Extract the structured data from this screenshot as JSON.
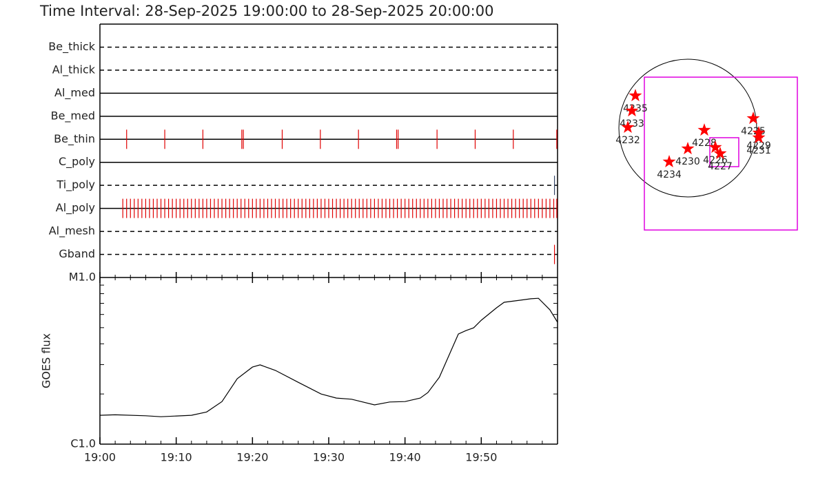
{
  "title": "Time Interval: 28-Sep-2025 19:00:00 to 28-Sep-2025 20:00:00",
  "chart_data": [
    {
      "type": "timeline",
      "categories": [
        "Be_thick",
        "Al_thick",
        "Al_med",
        "Be_med",
        "Be_thin",
        "C_poly",
        "Ti_poly",
        "Al_poly",
        "Al_mesh",
        "Gband"
      ],
      "line_styles": [
        "dashed",
        "dashed",
        "solid",
        "solid",
        "solid",
        "solid",
        "dashed",
        "solid",
        "dashed",
        "dashed"
      ],
      "event_colors": [
        "#e00000",
        "#e00000",
        "#e00000",
        "#e00000",
        "#e00000",
        "#e00000",
        "#334466",
        "#e00000",
        "#e00000",
        "#e00000"
      ],
      "events": [
        [],
        [],
        [],
        [],
        [
          3.5,
          8.5,
          13.5,
          18.6,
          18.8,
          23.9,
          28.9,
          33.9,
          38.9,
          39.1,
          44.2,
          49.2,
          54.2,
          59.9
        ],
        [],
        [
          59.6
        ],
        [
          3.0,
          3.5,
          4.0,
          4.5,
          5.0,
          5.5,
          6.0,
          6.5,
          7.0,
          7.5,
          8.0,
          8.5,
          9.0,
          9.5,
          10.0,
          10.5,
          11.0,
          11.5,
          12.0,
          12.5,
          13.0,
          13.5,
          14.0,
          14.5,
          15.0,
          15.5,
          16.0,
          16.5,
          17.0,
          17.5,
          18.0,
          18.5,
          19.0,
          19.5,
          20.0,
          20.5,
          21.0,
          21.5,
          22.0,
          22.5,
          23.0,
          23.5,
          24.0,
          24.5,
          25.0,
          25.5,
          26.0,
          26.5,
          27.0,
          27.5,
          28.0,
          28.5,
          29.0,
          29.5,
          30.0,
          30.5,
          31.0,
          31.5,
          32.0,
          32.5,
          33.0,
          33.5,
          34.0,
          34.5,
          35.0,
          35.5,
          36.0,
          36.5,
          37.0,
          37.5,
          38.0,
          38.5,
          39.0,
          39.5,
          40.0,
          40.5,
          41.0,
          41.5,
          42.0,
          42.5,
          43.0,
          43.5,
          44.0,
          44.5,
          45.0,
          45.5,
          46.0,
          46.5,
          47.0,
          47.5,
          48.0,
          48.5,
          49.0,
          49.5,
          50.0,
          50.5,
          51.0,
          51.5,
          52.0,
          52.5,
          53.0,
          53.5,
          54.0,
          54.5,
          55.0,
          55.5,
          56.0,
          56.5,
          57.0,
          57.5,
          58.0,
          58.5,
          59.0,
          59.5,
          59.9
        ],
        [],
        [
          59.6
        ]
      ],
      "xlim": [
        0,
        60
      ]
    },
    {
      "type": "line",
      "ylabel": "GOES flux",
      "color": "#000000",
      "log_y": true,
      "x": [
        0,
        2,
        6,
        8,
        12,
        14,
        16,
        18,
        20,
        21,
        23,
        26,
        29,
        31,
        33,
        36,
        38,
        40,
        42,
        43,
        44.5,
        46,
        47,
        48,
        49,
        50,
        52,
        53,
        55,
        56.5,
        57.5,
        59,
        60
      ],
      "values": [
        1.49e-06,
        1.5e-06,
        1.48e-06,
        1.46e-06,
        1.49e-06,
        1.56e-06,
        1.8e-06,
        2.47e-06,
        2.9e-06,
        2.99e-06,
        2.77e-06,
        2.35e-06,
        2e-06,
        1.89e-06,
        1.86e-06,
        1.72e-06,
        1.79e-06,
        1.8e-06,
        1.89e-06,
        2.04e-06,
        2.52e-06,
        3.61e-06,
        4.58e-06,
        4.8e-06,
        4.99e-06,
        5.54e-06,
        6.58e-06,
        7.1e-06,
        7.3e-06,
        7.45e-06,
        7.5e-06,
        6.4e-06,
        5.39e-06
      ],
      "xlim": [
        0,
        60
      ],
      "xticks": [
        {
          "value": 0,
          "label": "19:00"
        },
        {
          "value": 10,
          "label": "19:10"
        },
        {
          "value": 20,
          "label": "19:20"
        },
        {
          "value": 30,
          "label": "19:30"
        },
        {
          "value": 40,
          "label": "19:40"
        },
        {
          "value": 50,
          "label": "19:50"
        }
      ],
      "xminor": [
        2,
        4,
        6,
        8,
        12,
        14,
        16,
        18,
        22,
        24,
        26,
        28,
        32,
        34,
        36,
        38,
        42,
        44,
        46,
        48,
        52,
        54,
        56,
        58
      ],
      "ylim": [
        1e-06,
        1e-05
      ],
      "yticks": [
        {
          "value": 1e-06,
          "label": "C1.0"
        },
        {
          "value": 1e-05,
          "label": "M1.0"
        }
      ],
      "yminor": [
        2e-06,
        3e-06,
        4e-06,
        5e-06,
        6e-06,
        7e-06,
        8e-06,
        9e-06
      ]
    },
    {
      "type": "disk",
      "radius": 960,
      "region_color": "#ff0000",
      "box_color": "#e000e0",
      "regions": [
        {
          "label": "4235",
          "x": -730,
          "y": 451
        },
        {
          "label": "4233",
          "x": -778,
          "y": 240
        },
        {
          "label": "4232",
          "x": -835,
          "y": 10
        },
        {
          "label": "4228",
          "x": 230,
          "y": -29
        },
        {
          "label": "4230",
          "x": 0,
          "y": -288
        },
        {
          "label": "4234",
          "x": -259,
          "y": -470
        },
        {
          "label": "4226",
          "x": 384,
          "y": -269
        },
        {
          "label": "4227",
          "x": 451,
          "y": -355
        },
        {
          "label": "4225",
          "x": 912,
          "y": 134
        },
        {
          "label": "4229",
          "x": 989,
          "y": -67
        },
        {
          "label": "4231",
          "x": 989,
          "y": -134
        }
      ],
      "boxes": [
        {
          "x": [
            -605,
            1526
          ],
          "y": [
            710,
            -1421
          ]
        },
        {
          "x": [
            307,
            710
          ],
          "y": [
            -134,
            -538
          ]
        }
      ]
    }
  ]
}
